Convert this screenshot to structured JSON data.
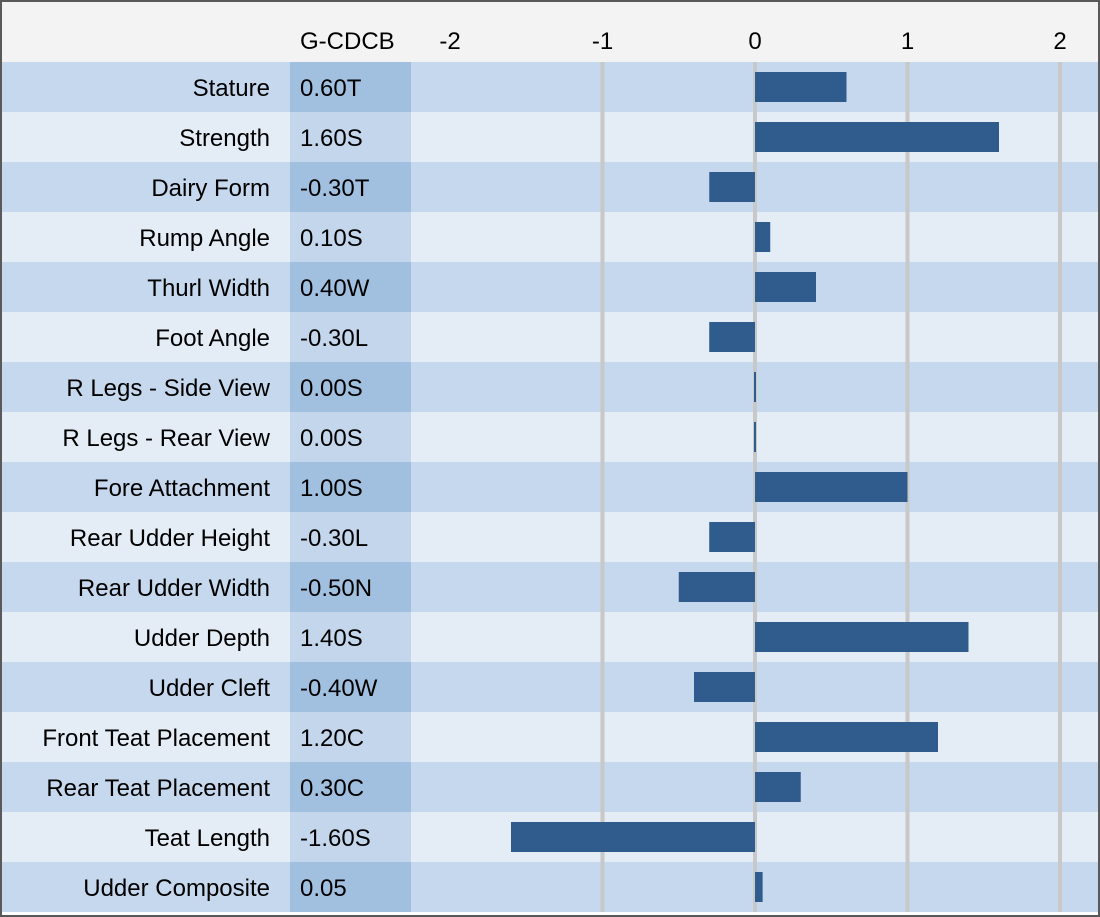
{
  "header": {
    "value_column_title": "G-CDCB"
  },
  "colors": {
    "header_background": "#f3f3f3",
    "row_dark": "#c6d8ed",
    "row_light": "#e4ecf6",
    "value_column_dark": "#a1c0e0",
    "value_column_light": "#c3d6eb",
    "bar": "#2f5b8d",
    "gridline": "#c8c8c8",
    "border": "#595959"
  },
  "chart_data": {
    "type": "bar",
    "orientation": "horizontal",
    "xlim": [
      -2,
      2
    ],
    "x_ticks": [
      "-2",
      "-1",
      "0",
      "1",
      "2"
    ],
    "x_tick_values": [
      -2,
      -1,
      0,
      1,
      2
    ],
    "grid": true,
    "categories": [
      "Stature",
      "Strength",
      "Dairy Form",
      "Rump Angle",
      "Thurl Width",
      "Foot Angle",
      "R Legs - Side View",
      "R Legs - Rear View",
      "Fore Attachment",
      "Rear Udder Height",
      "Rear Udder Width",
      "Udder Depth",
      "Udder Cleft",
      "Front Teat Placement",
      "Rear Teat Placement",
      "Teat Length",
      "Udder Composite"
    ],
    "values": [
      0.6,
      1.6,
      -0.3,
      0.1,
      0.4,
      -0.3,
      0.0,
      0.0,
      1.0,
      -0.3,
      -0.5,
      1.4,
      -0.4,
      1.2,
      0.3,
      -1.6,
      0.05
    ],
    "value_labels": [
      "0.60T",
      "1.60S",
      "-0.30T",
      "0.10S",
      "0.40W",
      "-0.30L",
      "0.00S",
      "0.00S",
      "1.00S",
      "-0.30L",
      "-0.50N",
      "1.40S",
      "-0.40W",
      "1.20C",
      "0.30C",
      "-1.60S",
      "0.05"
    ]
  }
}
